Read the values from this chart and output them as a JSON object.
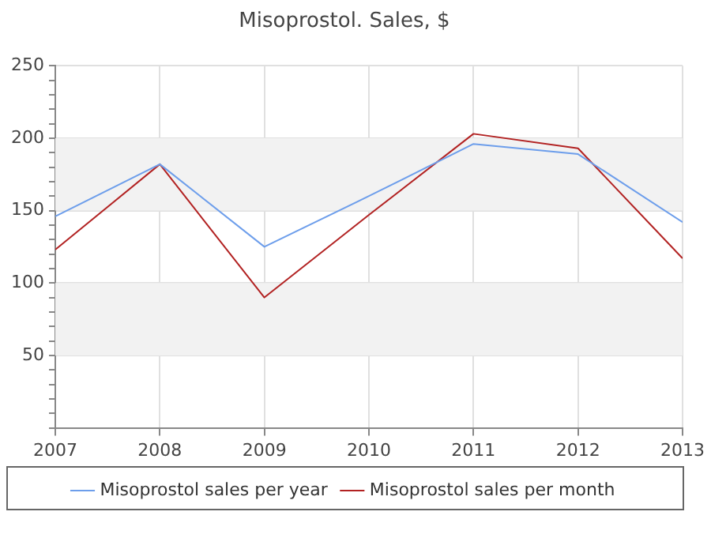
{
  "chart_data": {
    "type": "line",
    "title": "Misoprostol. Sales, $",
    "x": [
      2007,
      2008,
      2009,
      2010,
      2011,
      2012,
      2013
    ],
    "series": [
      {
        "name": "Misoprostol sales per year",
        "color": "#6d9eeb",
        "values": [
          146,
          182,
          125,
          160,
          196,
          189,
          142
        ]
      },
      {
        "name": "Misoprostol sales per month",
        "color": "#b22222",
        "values": [
          123,
          182,
          90,
          147,
          203,
          193,
          117
        ]
      }
    ],
    "xlim": [
      2007,
      2013
    ],
    "xticks": [
      2007,
      2008,
      2009,
      2010,
      2011,
      2012,
      2013
    ],
    "ylim": [
      0,
      250
    ],
    "yticks": [
      {
        "value": 0,
        "label": null
      },
      {
        "value": 10,
        "label": null
      },
      {
        "value": 20,
        "label": null
      },
      {
        "value": 30,
        "label": null
      },
      {
        "value": 40,
        "label": null
      },
      50,
      {
        "value": 60,
        "label": null
      },
      {
        "value": 70,
        "label": null
      },
      {
        "value": 80,
        "label": null
      },
      {
        "value": 90,
        "label": null
      },
      100,
      {
        "value": 110,
        "label": null
      },
      {
        "value": 120,
        "label": null
      },
      {
        "value": 130,
        "label": null
      },
      {
        "value": 140,
        "label": null
      },
      150,
      {
        "value": 160,
        "label": null
      },
      {
        "value": 170,
        "label": null
      },
      {
        "value": 180,
        "label": null
      },
      {
        "value": 190,
        "label": null
      },
      200,
      {
        "value": 210,
        "label": null
      },
      {
        "value": 220,
        "label": null
      },
      {
        "value": 230,
        "label": null
      },
      {
        "value": 240,
        "label": null
      },
      250
    ],
    "bands": [
      {
        "axis": "y",
        "from": 50,
        "to": 100,
        "color": "#f2f2f2"
      },
      {
        "axis": "y",
        "from": 150,
        "to": 200,
        "color": "#f2f2f2"
      }
    ],
    "grid": true,
    "legend": "bottom",
    "marker": "none",
    "line_style": "solid"
  }
}
